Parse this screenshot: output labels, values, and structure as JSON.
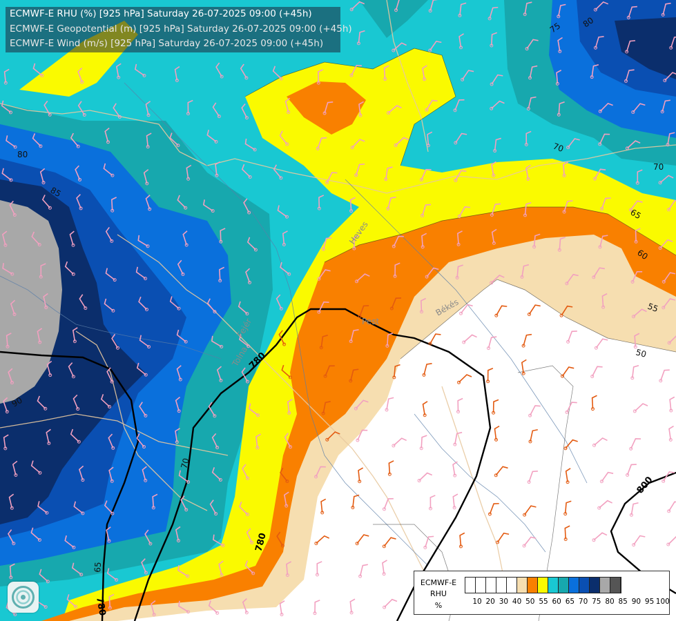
{
  "header": {
    "line1": "ECMWF-E RHU (%) [925 hPa] Saturday 26-07-2025 09:00 (+45h)",
    "line2": "ECMWF-E Geopotential (m) [925 hPa] Saturday 26-07-2025 09:00 (+45h)",
    "line3": "ECMWF-E Wind (m/s) [925 hPa] Saturday 26-07-2025 09:00 (+45h)"
  },
  "colors": {
    "rhu_50_55": "#ffffff",
    "rhu_55_60": "#f6deb0",
    "rhu_60_65": "#f98000",
    "rhu_65_70": "#fafa00",
    "rhu_70_75": "#19c8d2",
    "rhu_75_80": "#17a8ae",
    "rhu_80_85": "#0a70dc",
    "rhu_85_90": "#0a4fb2",
    "rhu_90_95": "#0b2e6c",
    "rhu_95_100": "#a8a8a8",
    "barb_dry": "#f2a0c0",
    "barb_moist": "#e35a10"
  },
  "legend": {
    "title1": "ECMWF-E",
    "title2": "RHU",
    "title3": "%",
    "swatches": [
      "#ffffff",
      "#ffffff",
      "#ffffff",
      "#ffffff",
      "#ffffff",
      "#f6deb0",
      "#f98000",
      "#fafa00",
      "#19c8d2",
      "#17a8ae",
      "#0a70dc",
      "#0a4fb2",
      "#0b2e6c",
      "#a8a8a8",
      "#555555"
    ],
    "ticks": [
      "10",
      "20",
      "30",
      "40",
      "50",
      "55",
      "60",
      "65",
      "70",
      "75",
      "80",
      "85",
      "90",
      "95",
      "100"
    ]
  },
  "contour_labels": {
    "rhu": [
      "75",
      "80",
      "80",
      "85",
      "90",
      "70",
      "70",
      "65",
      "60",
      "55",
      "50",
      "70",
      "65"
    ],
    "geopotential": [
      "780",
      "780",
      "780",
      "800"
    ]
  },
  "region_labels": [
    "Heves",
    "Pest",
    "Békés",
    "Tolna",
    "Fejér"
  ]
}
